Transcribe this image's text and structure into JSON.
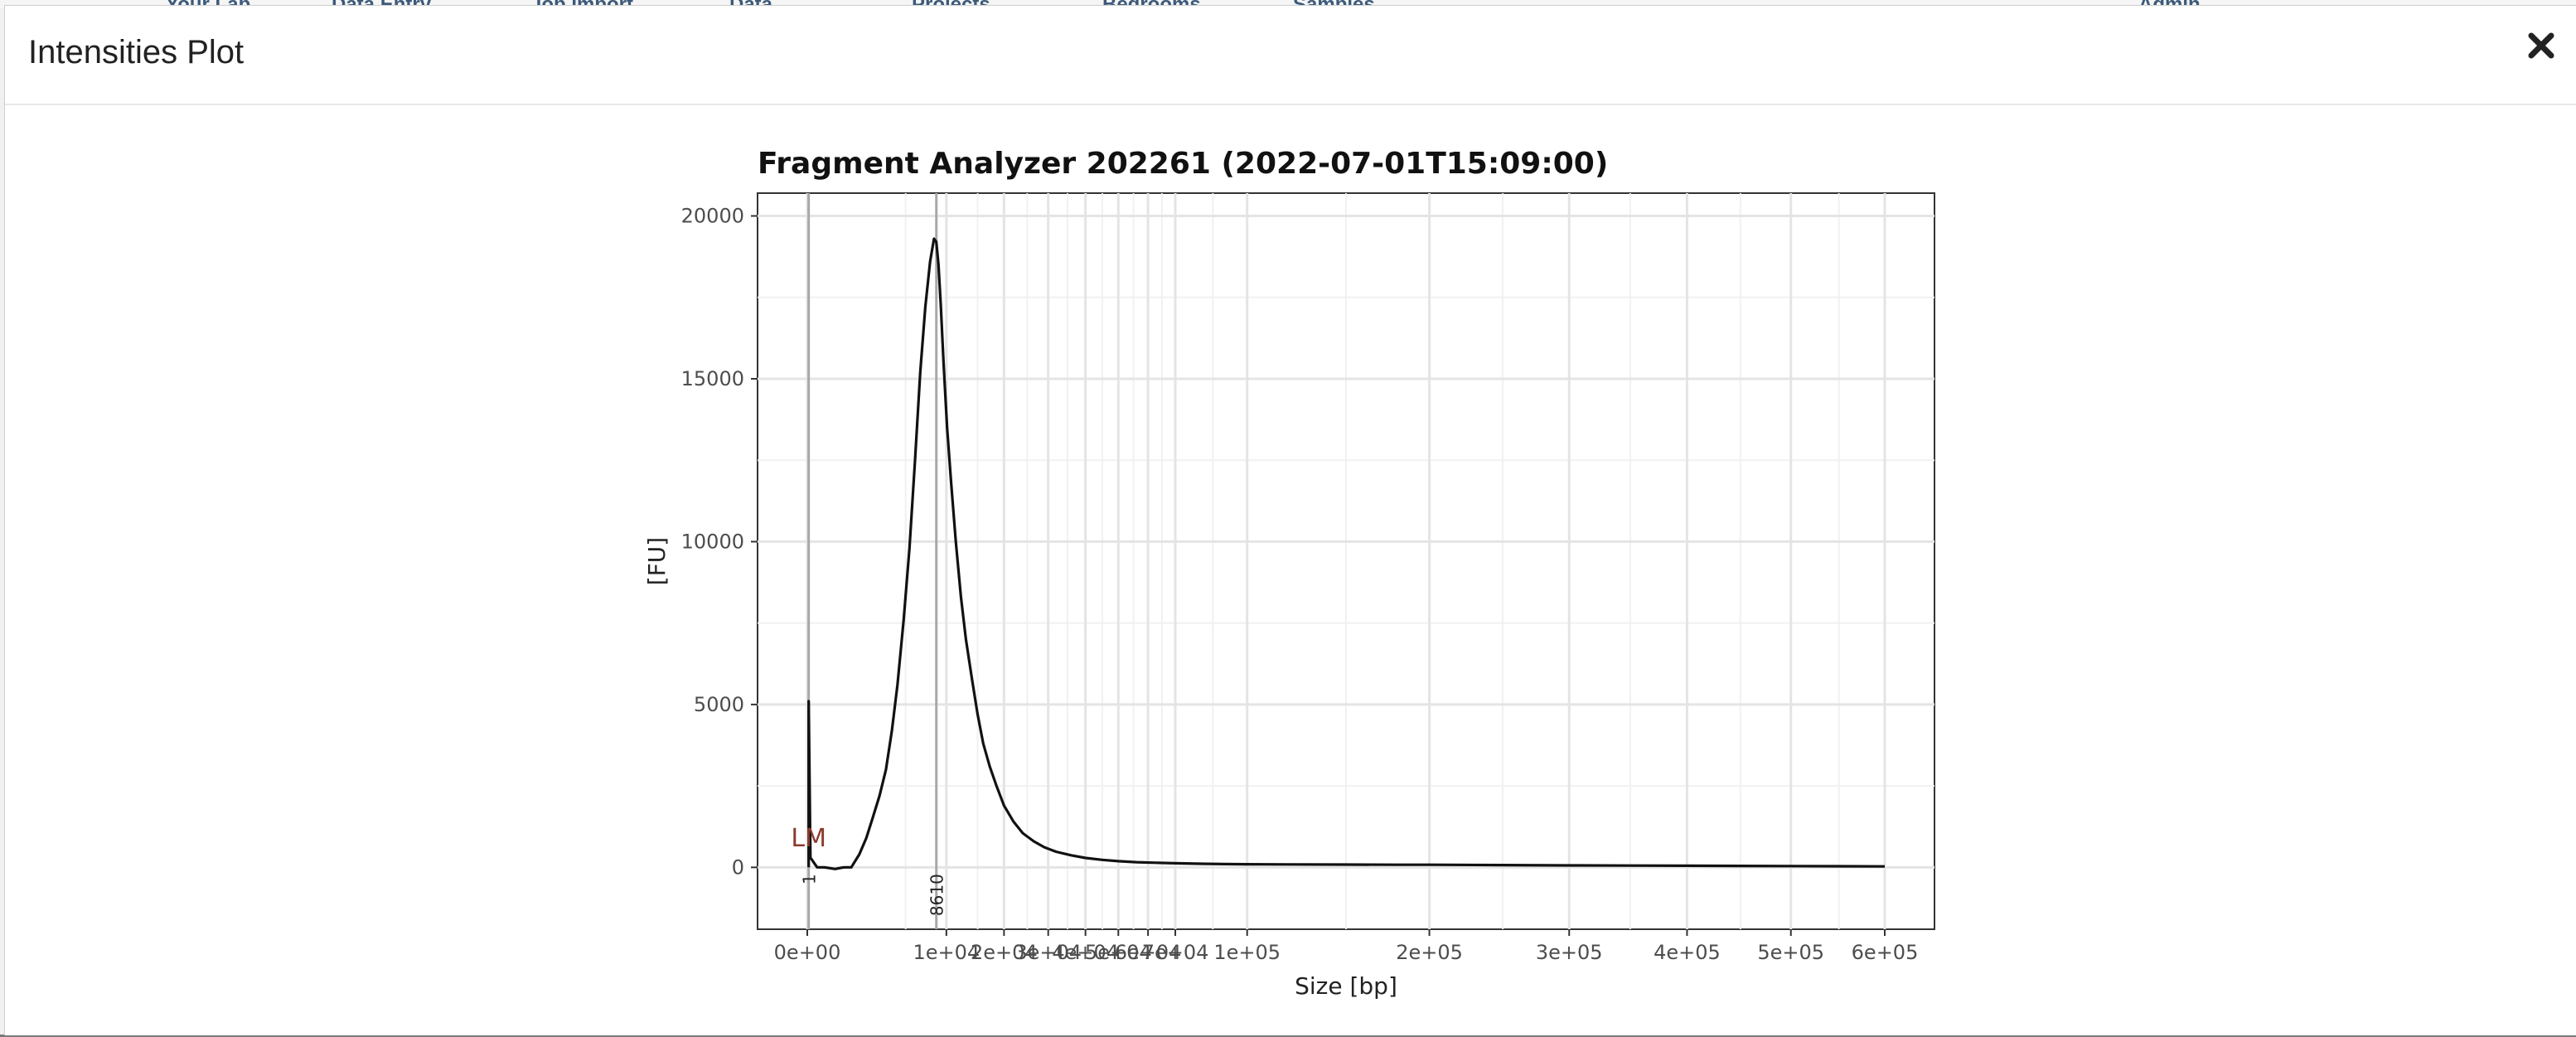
{
  "background_nav": {
    "items": [
      "Your Lab",
      "Data Entry",
      "Job Import",
      "Data",
      "Projects",
      "Bedrooms",
      "Samples",
      "Admin"
    ]
  },
  "modal": {
    "title": "Intensities Plot",
    "close_icon": "close-icon"
  },
  "chart_data": {
    "type": "line",
    "title": "Fragment Analyzer 202261 (2022-07-01T15:09:00)",
    "xlabel": "Size [bp]",
    "ylabel": "[FU]",
    "x_ticks": [
      0,
      10000,
      20000,
      30000,
      40000,
      50000,
      60000,
      70000,
      100000,
      200000,
      300000,
      400000,
      500000,
      600000
    ],
    "x_tick_labels": [
      "0e+00",
      "1e+04",
      "2e+04",
      "3e+04",
      "4e+04",
      "5e+04",
      "6e+04",
      "7e+04",
      "1e+05",
      "2e+05",
      "3e+05",
      "4e+05",
      "5e+05",
      "6e+05"
    ],
    "y_ticks": [
      0,
      5000,
      10000,
      15000,
      20000
    ],
    "y_tick_labels": [
      "0",
      "5000",
      "10000",
      "15000",
      "20000"
    ],
    "ylim": [
      -1900,
      20700
    ],
    "x_scale": "sqrt",
    "grid": true,
    "series": [
      {
        "x": [
          1,
          1,
          5,
          50,
          150,
          400,
          700,
          1000,
          1400,
          1800,
          2200,
          2700,
          3200,
          3700,
          4200,
          4800,
          5400,
          6000,
          6600,
          7200,
          7800,
          8300,
          8610,
          8900,
          9200,
          9600,
          10100,
          10700,
          11400,
          12200,
          13000,
          14000,
          15000,
          16000,
          17200,
          18500,
          20000,
          22000,
          24000,
          26500,
          29000,
          32000,
          36000,
          40000,
          45000,
          50000,
          56000,
          63000,
          70000,
          80000,
          90000,
          100000,
          120000,
          150000,
          180000,
          200000,
          250000,
          300000,
          350000,
          400000,
          450000,
          500000,
          550000,
          600000
        ],
        "y": [
          0,
          5100,
          300,
          0,
          0,
          -50,
          0,
          0,
          400,
          900,
          1500,
          2200,
          3000,
          4200,
          5600,
          7600,
          9800,
          12500,
          15200,
          17200,
          18600,
          19300,
          19200,
          18500,
          17300,
          15500,
          13500,
          11800,
          10000,
          8300,
          7000,
          5800,
          4700,
          3800,
          3100,
          2500,
          1900,
          1400,
          1050,
          800,
          620,
          480,
          370,
          290,
          230,
          190,
          160,
          140,
          125,
          110,
          100,
          95,
          90,
          85,
          80,
          80,
          70,
          60,
          55,
          50,
          45,
          40,
          35,
          30
        ]
      }
    ],
    "annotations": [
      {
        "text": "LM",
        "x": 1,
        "y": 900,
        "color": "#8b3a2e"
      },
      {
        "text": "1",
        "x": 1,
        "y": -200,
        "rotation": -90
      },
      {
        "text": "8610",
        "x": 8610,
        "y": -200,
        "rotation": -90
      }
    ],
    "vlines": [
      1,
      8610
    ]
  }
}
